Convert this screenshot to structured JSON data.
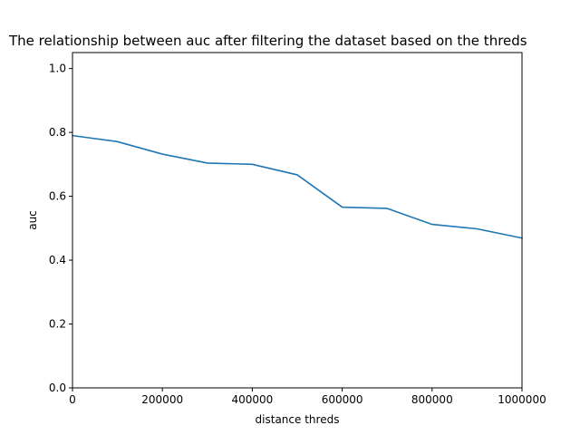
{
  "chart_data": {
    "type": "line",
    "title": "The relationship between auc after filtering the dataset based on the threds",
    "xlabel": "distance threds",
    "ylabel": "auc",
    "xlim": [
      0,
      1000000
    ],
    "ylim": [
      0,
      1.05
    ],
    "x_ticks": [
      0,
      200000,
      400000,
      600000,
      800000,
      1000000
    ],
    "x_tick_labels": [
      "0",
      "200000",
      "400000",
      "600000",
      "800000",
      "1000000"
    ],
    "y_ticks": [
      0.0,
      0.2,
      0.4,
      0.6,
      0.8,
      1.0
    ],
    "y_tick_labels": [
      "0.0",
      "0.2",
      "0.4",
      "0.6",
      "0.8",
      "1.0"
    ],
    "grid": false,
    "line_color": "#1f77b4",
    "series": [
      {
        "x": [
          0,
          100000,
          200000,
          300000,
          400000,
          500000,
          600000,
          700000,
          800000,
          900000,
          1000000
        ],
        "values": [
          0.79,
          0.771,
          0.732,
          0.704,
          0.7,
          0.667,
          0.566,
          0.562,
          0.512,
          0.498,
          0.469
        ]
      }
    ]
  }
}
